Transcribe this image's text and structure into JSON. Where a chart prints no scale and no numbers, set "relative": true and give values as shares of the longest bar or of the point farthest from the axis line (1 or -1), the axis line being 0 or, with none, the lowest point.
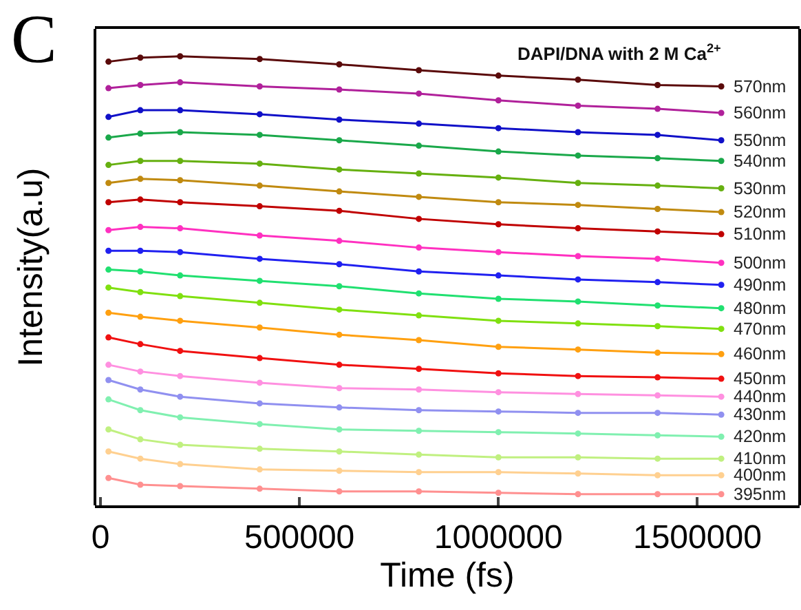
{
  "chart_data": {
    "type": "line",
    "title": "DAPI/DNA with 2 M Ca$^{2+}$",
    "xlabel": "Time (fs)",
    "ylabel": "Intensity(a.u)",
    "annotations": [
      "C"
    ],
    "relative": true,
    "marker": "circle",
    "legend": "right",
    "grid": false,
    "x": [
      20000,
      100000,
      200000,
      400000,
      600000,
      800000,
      1000000,
      1200000,
      1400000,
      1560000
    ],
    "xlim": [
      -14000,
      1757000
    ],
    "xticks": [
      0,
      500000,
      1000000,
      1500000
    ],
    "series": [
      {
        "name": "570nm",
        "color": "#5a0a0a",
        "values": [
          0.988,
          0.997,
          1,
          0.994,
          0.982,
          0.969,
          0.957,
          0.948,
          0.936,
          0.933
        ]
      },
      {
        "name": "560nm",
        "color": "#b0209a",
        "values": [
          0.929,
          0.936,
          0.942,
          0.933,
          0.926,
          0.917,
          0.902,
          0.89,
          0.883,
          0.874
        ]
      },
      {
        "name": "550nm",
        "color": "#1010c8",
        "values": [
          0.865,
          0.88,
          0.88,
          0.871,
          0.859,
          0.85,
          0.84,
          0.831,
          0.825,
          0.813
        ]
      },
      {
        "name": "540nm",
        "color": "#1aa84a",
        "values": [
          0.819,
          0.828,
          0.831,
          0.825,
          0.813,
          0.801,
          0.788,
          0.779,
          0.773,
          0.767
        ]
      },
      {
        "name": "530nm",
        "color": "#66b010",
        "values": [
          0.758,
          0.767,
          0.767,
          0.761,
          0.748,
          0.739,
          0.73,
          0.718,
          0.712,
          0.706
        ]
      },
      {
        "name": "520nm",
        "color": "#c08a10",
        "values": [
          0.718,
          0.727,
          0.724,
          0.712,
          0.699,
          0.687,
          0.675,
          0.669,
          0.66,
          0.653
        ]
      },
      {
        "name": "510nm",
        "color": "#c00000",
        "values": [
          0.675,
          0.681,
          0.675,
          0.666,
          0.656,
          0.638,
          0.626,
          0.617,
          0.61,
          0.604
        ]
      },
      {
        "name": "500nm",
        "color": "#ff30c0",
        "values": [
          0.613,
          0.62,
          0.617,
          0.601,
          0.589,
          0.574,
          0.564,
          0.555,
          0.549,
          0.54
        ]
      },
      {
        "name": "490nm",
        "color": "#2020f0",
        "values": [
          0.567,
          0.567,
          0.564,
          0.549,
          0.537,
          0.521,
          0.512,
          0.503,
          0.497,
          0.491
        ]
      },
      {
        "name": "480nm",
        "color": "#20e070",
        "values": [
          0.525,
          0.521,
          0.512,
          0.5,
          0.488,
          0.472,
          0.46,
          0.454,
          0.445,
          0.439
        ]
      },
      {
        "name": "470nm",
        "color": "#80e010",
        "values": [
          0.485,
          0.475,
          0.466,
          0.451,
          0.436,
          0.423,
          0.411,
          0.405,
          0.399,
          0.393
        ]
      },
      {
        "name": "460nm",
        "color": "#ffa010",
        "values": [
          0.429,
          0.42,
          0.411,
          0.396,
          0.38,
          0.368,
          0.353,
          0.347,
          0.34,
          0.337
        ]
      },
      {
        "name": "450nm",
        "color": "#f01010",
        "values": [
          0.374,
          0.359,
          0.344,
          0.328,
          0.313,
          0.304,
          0.294,
          0.288,
          0.285,
          0.282
        ]
      },
      {
        "name": "440nm",
        "color": "#ff90e0",
        "values": [
          0.313,
          0.298,
          0.288,
          0.273,
          0.261,
          0.258,
          0.252,
          0.248,
          0.245,
          0.242
        ]
      },
      {
        "name": "430nm",
        "color": "#9090f0",
        "values": [
          0.279,
          0.258,
          0.242,
          0.227,
          0.218,
          0.212,
          0.209,
          0.206,
          0.206,
          0.202
        ]
      },
      {
        "name": "420nm",
        "color": "#80f0b0",
        "values": [
          0.236,
          0.212,
          0.196,
          0.181,
          0.169,
          0.166,
          0.163,
          0.16,
          0.156,
          0.153
        ]
      },
      {
        "name": "410nm",
        "color": "#c0f080",
        "values": [
          0.169,
          0.147,
          0.135,
          0.126,
          0.12,
          0.113,
          0.107,
          0.107,
          0.104,
          0.104
        ]
      },
      {
        "name": "400nm",
        "color": "#ffd090",
        "values": [
          0.12,
          0.104,
          0.092,
          0.08,
          0.077,
          0.074,
          0.074,
          0.071,
          0.067,
          0.067
        ]
      },
      {
        "name": "395nm",
        "color": "#ff9090",
        "values": [
          0.061,
          0.046,
          0.043,
          0.037,
          0.031,
          0.031,
          0.028,
          0.025,
          0.025,
          0.025
        ]
      }
    ]
  }
}
